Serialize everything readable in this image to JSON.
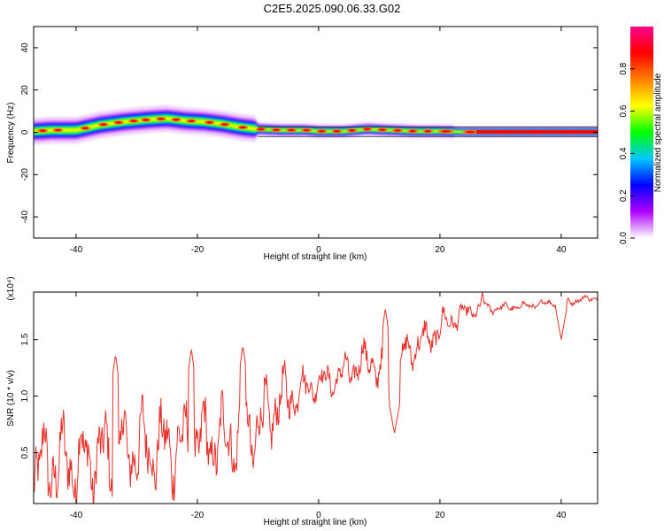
{
  "title": "C2E5.2025.090.06.33.G02",
  "chart_data": [
    {
      "type": "heatmap",
      "xlabel": "Height of straight line (km)",
      "ylabel": "Frequency (Hz)",
      "xlim": [
        -47,
        46
      ],
      "ylim": [
        -50,
        50
      ],
      "xticks": [
        -40,
        -20,
        0,
        20,
        40
      ],
      "yticks": [
        -40,
        -20,
        0,
        20,
        40
      ],
      "colorbar": {
        "label": "Normalized spectral amplitude",
        "range": [
          0,
          1
        ],
        "ticks": [
          "0.0",
          "0.2",
          "0.4",
          "0.6",
          "0.8"
        ],
        "colors": [
          "#ffffff",
          "#b000ff",
          "#0000ff",
          "#00c8ff",
          "#00ff00",
          "#ffff00",
          "#ff8000",
          "#ff0000",
          "#ff0090"
        ]
      },
      "ridge": {
        "x": [
          -47,
          -44,
          -40,
          -36,
          -32,
          -28,
          -25,
          -22,
          -19,
          -16,
          -13,
          -10,
          -6,
          -2,
          0,
          4,
          8,
          12,
          16,
          20,
          24,
          28,
          32,
          36,
          40,
          46
        ],
        "freq": [
          0.5,
          1.0,
          1.0,
          3.5,
          5.0,
          6.0,
          6.5,
          5.5,
          5.0,
          4.0,
          2.5,
          1.5,
          1.0,
          1.0,
          0.5,
          0.5,
          1.5,
          1.0,
          0.5,
          0.5,
          0.2,
          0.2,
          0.2,
          0.2,
          0.2,
          0.2
        ],
        "peak_x": [
          -45.5,
          -43,
          -38.5,
          -35.5,
          -33,
          -30.5,
          -28.5,
          -26,
          -23.5,
          -21,
          -18,
          -15.5,
          -12.5,
          -9.5,
          -7,
          -4.5,
          -2,
          0.5,
          3,
          5.5,
          8,
          10.5,
          13,
          15.5,
          18,
          21,
          25,
          30,
          36,
          42
        ]
      }
    },
    {
      "type": "line",
      "xlabel": "Height of straight line (km)",
      "ylabel": "SNR (10 * v/v)",
      "scale_note": "(x10⁴)",
      "xlim": [
        -47,
        46
      ],
      "ylim": [
        0.05,
        1.92
      ],
      "xticks": [
        -40,
        -20,
        0,
        20,
        40
      ],
      "ytick_labels": [
        "0.5",
        "1.0",
        "1.5"
      ],
      "ytick_values": [
        0.5,
        1.0,
        1.5
      ],
      "color": "#e8302a",
      "anchors": {
        "x": [
          -47,
          -45,
          -40,
          -35,
          -30,
          -25,
          -20,
          -15,
          -10,
          -7,
          -5,
          -2,
          0,
          3,
          6,
          9,
          11,
          13,
          15,
          18,
          20,
          22,
          25,
          27,
          30,
          35,
          40,
          42,
          44,
          46
        ],
        "y": [
          0.35,
          0.4,
          0.42,
          0.48,
          0.55,
          0.55,
          0.58,
          0.62,
          0.72,
          0.92,
          1.0,
          1.08,
          1.12,
          1.16,
          1.26,
          1.33,
          1.1,
          1.28,
          1.42,
          1.5,
          1.6,
          1.68,
          1.75,
          1.78,
          1.78,
          1.8,
          1.84,
          1.84,
          1.86,
          1.87
        ]
      },
      "amplitude": {
        "x": [
          -47,
          -10,
          0,
          10,
          20,
          25,
          30,
          46
        ],
        "a": [
          0.42,
          0.38,
          0.14,
          0.22,
          0.16,
          0.08,
          0.04,
          0.03
        ]
      },
      "dips": [
        {
          "x": 12.5,
          "y": 0.67
        },
        {
          "x": 40,
          "y": 1.5
        }
      ],
      "peaks": [
        {
          "x": -33.5,
          "y": 1.37
        },
        {
          "x": -21,
          "y": 1.42
        },
        {
          "x": -12.5,
          "y": 1.45
        },
        {
          "x": 11,
          "y": 1.78
        },
        {
          "x": 27,
          "y": 1.93
        }
      ]
    }
  ]
}
